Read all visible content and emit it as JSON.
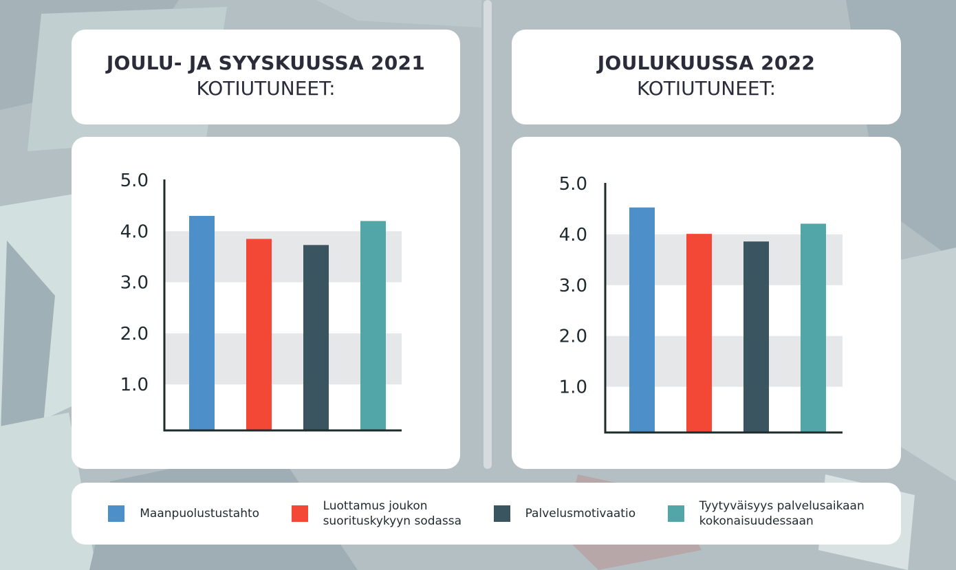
{
  "chart_data": [
    {
      "type": "bar",
      "title": "JOULU- JA SYYSKUUSSA 2021",
      "subtitle": "KOTIUTUNEET:",
      "categories": [
        "Maanpuolustustahto",
        "Luottamus joukon suorituskykyyn sodassa",
        "Palvelusmotivaatio",
        "Tyytyväisyys palvelusaikaan kokonaisuudessaan"
      ],
      "values": [
        4.3,
        3.85,
        3.73,
        4.2
      ],
      "yticks": [
        "1.0",
        "2.0",
        "3.0",
        "4.0",
        "5.0"
      ],
      "ylim": [
        0.1,
        5.0
      ],
      "xlabel": "",
      "ylabel": ""
    },
    {
      "type": "bar",
      "title": "JOULUKUUSSA 2022",
      "subtitle": "KOTIUTUNEET:",
      "categories": [
        "Maanpuolustustahto",
        "Luottamus joukon suorituskykyyn sodassa",
        "Palvelusmotivaatio",
        "Tyytyväisyys palvelusaikaan kokonaisuudessaan"
      ],
      "values": [
        4.53,
        4.01,
        3.86,
        4.21
      ],
      "yticks": [
        "1.0",
        "2.0",
        "3.0",
        "4.0",
        "5.0"
      ],
      "ylim": [
        0.1,
        5.0
      ],
      "xlabel": "",
      "ylabel": ""
    }
  ],
  "legend": [
    {
      "label": "Maanpuolustustahto",
      "color": "#4d8fc8"
    },
    {
      "label": "Luottamus joukon\nsuorituskykyyn sodassa",
      "color": "#f44836"
    },
    {
      "label": "Palvelusmotivaatio",
      "color": "#3a5560"
    },
    {
      "label": "Tyytyväisyys palvelusaikaan\nkokonaisuudessaan",
      "color": "#52a6a7"
    }
  ],
  "colors": {
    "band": "#e6e7e8",
    "axis": "#1e2b2b",
    "tick_text": "#1e2a30"
  }
}
